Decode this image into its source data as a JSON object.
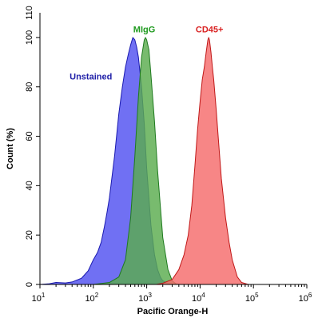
{
  "chart_data": {
    "type": "area",
    "title": "",
    "xlabel": "Pacific Orange-H",
    "ylabel": "Count  (%)",
    "x_scale": "log",
    "xlim": [
      10,
      1000000
    ],
    "ylim": [
      0,
      110
    ],
    "x_ticks": [
      {
        "value": 10,
        "base": "10",
        "exp": "1"
      },
      {
        "value": 100,
        "base": "10",
        "exp": "2"
      },
      {
        "value": 1000,
        "base": "10",
        "exp": "3"
      },
      {
        "value": 10000,
        "base": "10",
        "exp": "4"
      },
      {
        "value": 100000,
        "base": "10",
        "exp": "5"
      },
      {
        "value": 1000000,
        "base": "10",
        "exp": "6"
      }
    ],
    "y_ticks": [
      "0",
      "20",
      "40",
      "60",
      "80",
      "100"
    ],
    "y_tick_values": [
      0,
      20,
      40,
      60,
      80,
      100
    ],
    "y_tick_labels": [
      "0",
      "20",
      "40",
      "60",
      "80",
      "100",
      "110"
    ],
    "y_label_values": [
      0,
      20,
      40,
      60,
      80,
      100,
      110
    ],
    "grid": false,
    "legend": "none",
    "series": [
      {
        "name": "Unstained",
        "fill": "#5050f0",
        "stroke": "#1a1ab0",
        "label_color": "#1f1fa8",
        "label_at": [
          90,
          83
        ],
        "points": [
          [
            10,
            0
          ],
          [
            15,
            0.3
          ],
          [
            20,
            0.8
          ],
          [
            30,
            0.6
          ],
          [
            40,
            1
          ],
          [
            60,
            2.5
          ],
          [
            80,
            5.5
          ],
          [
            100,
            10
          ],
          [
            120,
            13
          ],
          [
            140,
            17
          ],
          [
            160,
            23
          ],
          [
            180,
            29
          ],
          [
            200,
            35
          ],
          [
            250,
            52
          ],
          [
            300,
            69
          ],
          [
            350,
            80
          ],
          [
            400,
            88
          ],
          [
            450,
            93
          ],
          [
            500,
            97
          ],
          [
            550,
            100
          ],
          [
            600,
            99
          ],
          [
            650,
            96
          ],
          [
            700,
            92
          ],
          [
            800,
            80
          ],
          [
            900,
            65
          ],
          [
            1000,
            47
          ],
          [
            1200,
            24
          ],
          [
            1400,
            12
          ],
          [
            1600,
            6
          ],
          [
            1800,
            3
          ],
          [
            2000,
            1.5
          ],
          [
            2500,
            0.5
          ],
          [
            3000,
            0
          ]
        ]
      },
      {
        "name": "MIgG",
        "fill": "#5aac4e",
        "stroke": "#1f7a1f",
        "label_color": "#1f9a1f",
        "label_at": [
          900,
          102
        ],
        "points": [
          [
            100,
            0
          ],
          [
            200,
            0.8
          ],
          [
            300,
            3
          ],
          [
            400,
            10
          ],
          [
            500,
            27
          ],
          [
            600,
            52
          ],
          [
            700,
            76
          ],
          [
            800,
            92
          ],
          [
            900,
            99
          ],
          [
            950,
            100
          ],
          [
            1000,
            99
          ],
          [
            1100,
            95
          ],
          [
            1200,
            85
          ],
          [
            1400,
            66
          ],
          [
            1600,
            46
          ],
          [
            2000,
            19
          ],
          [
            2500,
            6
          ],
          [
            3000,
            1.5
          ],
          [
            3500,
            0.3
          ],
          [
            4000,
            0
          ]
        ]
      },
      {
        "name": "CD45+",
        "fill": "#f56b6b",
        "stroke": "#c01818",
        "label_color": "#d92020",
        "label_at": [
          15000,
          102
        ],
        "points": [
          [
            1500,
            0
          ],
          [
            2000,
            0.5
          ],
          [
            3000,
            2
          ],
          [
            4000,
            6
          ],
          [
            5000,
            12
          ],
          [
            6000,
            20
          ],
          [
            7000,
            32
          ],
          [
            8000,
            48
          ],
          [
            9000,
            63
          ],
          [
            10000,
            74
          ],
          [
            11000,
            83
          ],
          [
            12000,
            88
          ],
          [
            13000,
            94
          ],
          [
            14000,
            99
          ],
          [
            14500,
            100
          ],
          [
            15000,
            99
          ],
          [
            16000,
            94
          ],
          [
            17000,
            88
          ],
          [
            18000,
            83
          ],
          [
            20000,
            71
          ],
          [
            22000,
            59
          ],
          [
            25000,
            43
          ],
          [
            30000,
            27
          ],
          [
            35000,
            17
          ],
          [
            40000,
            10
          ],
          [
            50000,
            3
          ],
          [
            60000,
            0.8
          ],
          [
            80000,
            0
          ]
        ]
      }
    ]
  }
}
